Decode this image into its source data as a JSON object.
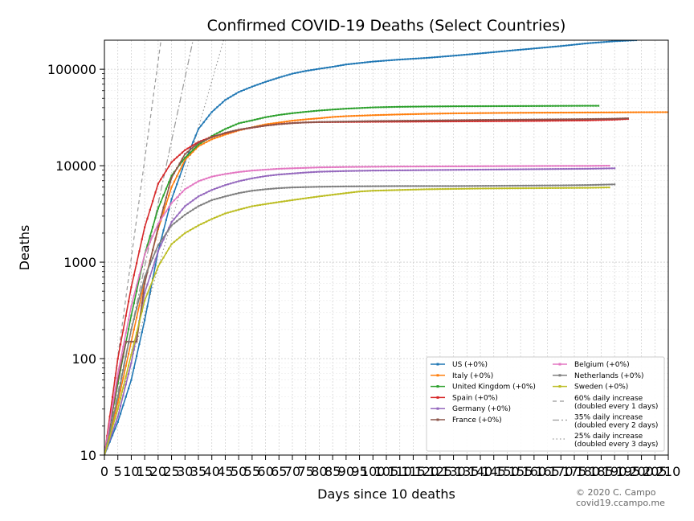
{
  "chart_data": {
    "type": "line",
    "title": "Confirmed COVID-19 Deaths (Select Countries)",
    "xlabel": "Days since 10 deaths",
    "ylabel": "Deaths",
    "xlim": [
      0,
      210
    ],
    "ylim": [
      10,
      200000
    ],
    "yscale": "log",
    "grid": true,
    "legend_position": "bottom-right",
    "x_ticks": [
      "0",
      "5",
      "10",
      "15",
      "20",
      "25",
      "30",
      "35",
      "40",
      "45",
      "50",
      "55",
      "60",
      "65",
      "70",
      "75",
      "80",
      "85",
      "90",
      "95",
      "100",
      "105",
      "110",
      "115",
      "120",
      "125",
      "130",
      "135",
      "140",
      "145",
      "150",
      "155",
      "160",
      "165",
      "170",
      "175",
      "180",
      "185",
      "190",
      "195",
      "200",
      "205",
      "210"
    ],
    "y_ticks": [
      {
        "value": 10,
        "label": "10"
      },
      {
        "value": 100,
        "label": "100"
      },
      {
        "value": 1000,
        "label": "1000"
      },
      {
        "value": 10000,
        "label": "10000"
      },
      {
        "value": 100000,
        "label": "100000"
      }
    ],
    "series": [
      {
        "name": "US (+0%)",
        "color": "#1f77b4",
        "points": [
          [
            0,
            10
          ],
          [
            5,
            22
          ],
          [
            10,
            60
          ],
          [
            15,
            250
          ],
          [
            20,
            1300
          ],
          [
            25,
            4500
          ],
          [
            30,
            11000
          ],
          [
            35,
            24000
          ],
          [
            40,
            36000
          ],
          [
            45,
            48000
          ],
          [
            50,
            58000
          ],
          [
            55,
            66000
          ],
          [
            60,
            74000
          ],
          [
            65,
            82000
          ],
          [
            70,
            90000
          ],
          [
            75,
            96000
          ],
          [
            80,
            101000
          ],
          [
            85,
            106000
          ],
          [
            90,
            112000
          ],
          [
            100,
            120000
          ],
          [
            110,
            126000
          ],
          [
            120,
            131000
          ],
          [
            130,
            138000
          ],
          [
            140,
            146000
          ],
          [
            150,
            155000
          ],
          [
            160,
            164000
          ],
          [
            170,
            174000
          ],
          [
            180,
            186000
          ],
          [
            190,
            195000
          ],
          [
            198,
            200000
          ]
        ]
      },
      {
        "name": "Italy (+0%)",
        "color": "#ff7f0e",
        "points": [
          [
            0,
            10
          ],
          [
            5,
            35
          ],
          [
            10,
            150
          ],
          [
            15,
            630
          ],
          [
            20,
            2200
          ],
          [
            25,
            6000
          ],
          [
            30,
            11500
          ],
          [
            35,
            15900
          ],
          [
            40,
            18800
          ],
          [
            45,
            21000
          ],
          [
            50,
            23200
          ],
          [
            55,
            25000
          ],
          [
            60,
            26800
          ],
          [
            65,
            28000
          ],
          [
            70,
            29300
          ],
          [
            75,
            30200
          ],
          [
            80,
            31000
          ],
          [
            85,
            32000
          ],
          [
            90,
            32600
          ],
          [
            100,
            33400
          ],
          [
            110,
            34000
          ],
          [
            120,
            34500
          ],
          [
            130,
            34900
          ],
          [
            140,
            35100
          ],
          [
            150,
            35300
          ],
          [
            160,
            35400
          ],
          [
            170,
            35500
          ],
          [
            180,
            35600
          ],
          [
            190,
            35700
          ],
          [
            200,
            35800
          ],
          [
            210,
            35900
          ]
        ]
      },
      {
        "name": "United Kingdom (+0%)",
        "color": "#2ca02c",
        "points": [
          [
            0,
            10
          ],
          [
            5,
            55
          ],
          [
            10,
            280
          ],
          [
            15,
            1200
          ],
          [
            20,
            3600
          ],
          [
            25,
            7900
          ],
          [
            30,
            12100
          ],
          [
            35,
            16500
          ],
          [
            40,
            20300
          ],
          [
            45,
            24000
          ],
          [
            50,
            27500
          ],
          [
            55,
            29500
          ],
          [
            60,
            31800
          ],
          [
            65,
            33600
          ],
          [
            70,
            35000
          ],
          [
            75,
            36200
          ],
          [
            80,
            37300
          ],
          [
            85,
            38200
          ],
          [
            90,
            39000
          ],
          [
            100,
            40200
          ],
          [
            110,
            40800
          ],
          [
            120,
            41100
          ],
          [
            130,
            41300
          ],
          [
            140,
            41400
          ],
          [
            150,
            41500
          ],
          [
            160,
            41600
          ],
          [
            170,
            41700
          ],
          [
            180,
            41800
          ],
          [
            184,
            41800
          ]
        ]
      },
      {
        "name": "Spain (+0%)",
        "color": "#d62728",
        "points": [
          [
            0,
            10
          ],
          [
            5,
            100
          ],
          [
            10,
            550
          ],
          [
            15,
            2300
          ],
          [
            20,
            6500
          ],
          [
            25,
            10900
          ],
          [
            30,
            14500
          ],
          [
            35,
            17600
          ],
          [
            40,
            19900
          ],
          [
            45,
            21700
          ],
          [
            50,
            23500
          ],
          [
            55,
            24800
          ],
          [
            60,
            26000
          ],
          [
            65,
            27000
          ],
          [
            70,
            27700
          ],
          [
            75,
            28100
          ],
          [
            80,
            28300
          ],
          [
            90,
            28400
          ],
          [
            100,
            28500
          ],
          [
            120,
            28700
          ],
          [
            140,
            28900
          ],
          [
            160,
            29100
          ],
          [
            180,
            29500
          ],
          [
            190,
            30000
          ],
          [
            195,
            30500
          ]
        ]
      },
      {
        "name": "Germany (+0%)",
        "color": "#9467bd",
        "points": [
          [
            0,
            10
          ],
          [
            5,
            25
          ],
          [
            10,
            90
          ],
          [
            15,
            480
          ],
          [
            20,
            1300
          ],
          [
            25,
            2600
          ],
          [
            30,
            3800
          ],
          [
            35,
            4800
          ],
          [
            40,
            5600
          ],
          [
            45,
            6300
          ],
          [
            50,
            6900
          ],
          [
            55,
            7400
          ],
          [
            60,
            7800
          ],
          [
            65,
            8100
          ],
          [
            70,
            8300
          ],
          [
            75,
            8500
          ],
          [
            80,
            8650
          ],
          [
            90,
            8800
          ],
          [
            100,
            8900
          ],
          [
            120,
            9000
          ],
          [
            140,
            9100
          ],
          [
            160,
            9200
          ],
          [
            180,
            9300
          ],
          [
            190,
            9400
          ]
        ]
      },
      {
        "name": "France (+0%)",
        "color": "#8c564b",
        "points": [
          [
            0,
            10
          ],
          [
            5,
            60
          ],
          [
            8,
            150
          ],
          [
            12,
            150
          ],
          [
            15,
            600
          ],
          [
            20,
            2300
          ],
          [
            25,
            7500
          ],
          [
            30,
            13200
          ],
          [
            35,
            17200
          ],
          [
            40,
            19700
          ],
          [
            45,
            21900
          ],
          [
            50,
            23600
          ],
          [
            55,
            24900
          ],
          [
            60,
            26000
          ],
          [
            65,
            26900
          ],
          [
            70,
            27600
          ],
          [
            75,
            28100
          ],
          [
            80,
            28400
          ],
          [
            90,
            28700
          ],
          [
            100,
            29000
          ],
          [
            120,
            29400
          ],
          [
            140,
            29800
          ],
          [
            160,
            30100
          ],
          [
            180,
            30400
          ],
          [
            190,
            30700
          ],
          [
            195,
            31000
          ]
        ]
      },
      {
        "name": "Belgium (+0%)",
        "color": "#e377c2",
        "points": [
          [
            0,
            10
          ],
          [
            5,
            70
          ],
          [
            10,
            350
          ],
          [
            15,
            1200
          ],
          [
            20,
            2500
          ],
          [
            25,
            4100
          ],
          [
            30,
            5700
          ],
          [
            35,
            6900
          ],
          [
            40,
            7700
          ],
          [
            45,
            8200
          ],
          [
            50,
            8600
          ],
          [
            55,
            8900
          ],
          [
            60,
            9100
          ],
          [
            65,
            9300
          ],
          [
            70,
            9400
          ],
          [
            75,
            9500
          ],
          [
            80,
            9600
          ],
          [
            90,
            9700
          ],
          [
            110,
            9800
          ],
          [
            130,
            9850
          ],
          [
            150,
            9900
          ],
          [
            170,
            9950
          ],
          [
            180,
            9950
          ],
          [
            188,
            10000
          ]
        ]
      },
      {
        "name": "Netherlands (+0%)",
        "color": "#7f7f7f",
        "points": [
          [
            0,
            10
          ],
          [
            5,
            40
          ],
          [
            10,
            200
          ],
          [
            15,
            700
          ],
          [
            20,
            1500
          ],
          [
            25,
            2400
          ],
          [
            30,
            3100
          ],
          [
            35,
            3800
          ],
          [
            40,
            4400
          ],
          [
            45,
            4800
          ],
          [
            50,
            5200
          ],
          [
            55,
            5500
          ],
          [
            60,
            5700
          ],
          [
            65,
            5850
          ],
          [
            70,
            5950
          ],
          [
            75,
            6000
          ],
          [
            80,
            6050
          ],
          [
            90,
            6100
          ],
          [
            110,
            6150
          ],
          [
            130,
            6150
          ],
          [
            150,
            6200
          ],
          [
            170,
            6250
          ],
          [
            180,
            6300
          ],
          [
            190,
            6400
          ]
        ]
      },
      {
        "name": "Sweden (+0%)",
        "color": "#bcbd22",
        "points": [
          [
            0,
            10
          ],
          [
            5,
            30
          ],
          [
            10,
            110
          ],
          [
            15,
            400
          ],
          [
            20,
            900
          ],
          [
            25,
            1540
          ],
          [
            30,
            2000
          ],
          [
            35,
            2400
          ],
          [
            40,
            2800
          ],
          [
            45,
            3200
          ],
          [
            50,
            3500
          ],
          [
            55,
            3800
          ],
          [
            60,
            4000
          ],
          [
            65,
            4200
          ],
          [
            70,
            4400
          ],
          [
            75,
            4600
          ],
          [
            80,
            4800
          ],
          [
            85,
            5000
          ],
          [
            90,
            5200
          ],
          [
            95,
            5400
          ],
          [
            100,
            5500
          ],
          [
            110,
            5600
          ],
          [
            120,
            5700
          ],
          [
            140,
            5800
          ],
          [
            160,
            5850
          ],
          [
            180,
            5900
          ],
          [
            188,
            5950
          ]
        ]
      },
      {
        "name": "60% daily increase\n(doubled every 1 days)",
        "color": "#999999",
        "dash": "5,4",
        "growth": 1.6
      },
      {
        "name": "35% daily increase\n(doubled every 2 days)",
        "color": "#999999",
        "dash": "8,3,2,3",
        "growth": 1.35
      },
      {
        "name": "25% daily increase\n(doubled every 3 days)",
        "color": "#999999",
        "dash": "1.5,3",
        "growth": 1.25
      }
    ],
    "credit": [
      "© 2020 C. Campo",
      "covid19.ccampo.me"
    ]
  }
}
